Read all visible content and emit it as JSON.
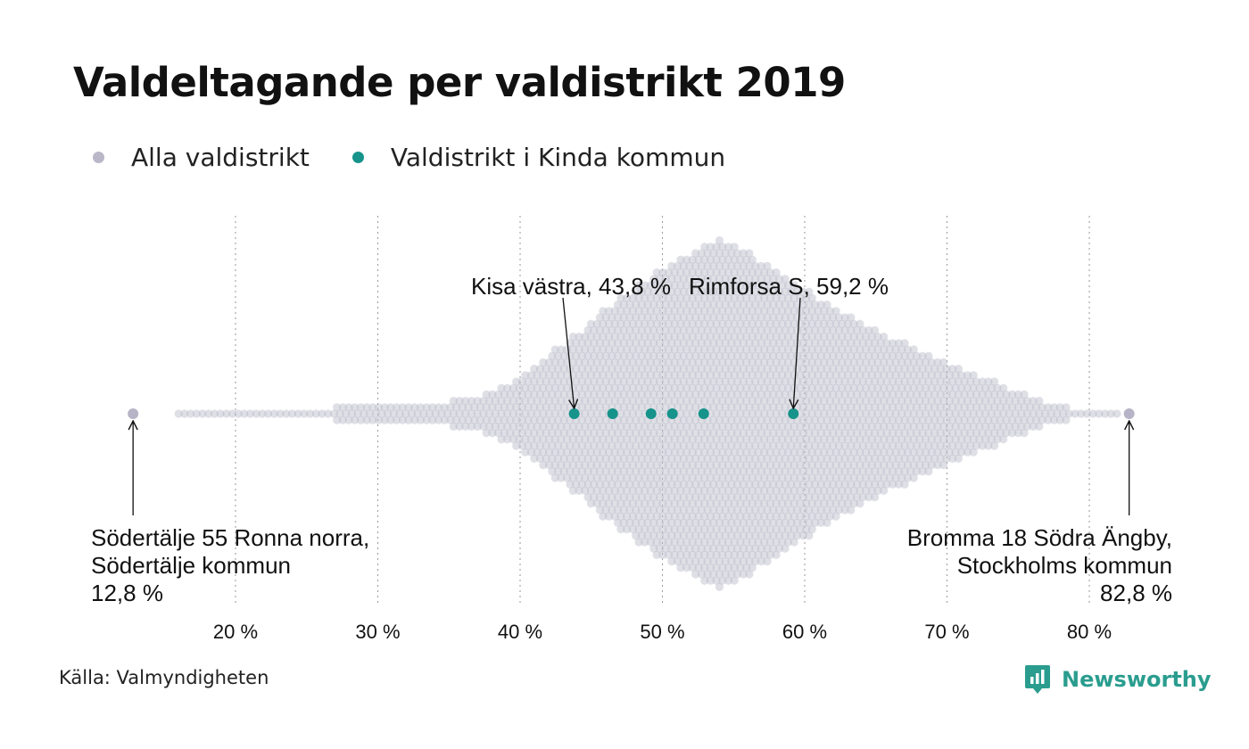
{
  "title": "Valdeltagande per valdistrikt 2019",
  "legend": {
    "all_label": "Alla valdistrikt",
    "all_color": "#b9b7c8",
    "kinda_label": "Valdistrikt i Kinda kommun",
    "kinda_color": "#16938a"
  },
  "source": "Källa: Valmyndigheten",
  "brand": {
    "name": "Newsworthy",
    "color": "#2a9d8f",
    "icon": "newsworthy-logo-icon"
  },
  "chart_data": {
    "type": "scatter",
    "subtype": "beeswarm",
    "title": "Valdeltagande per valdistrikt 2019",
    "xlim": [
      12.8,
      82.8
    ],
    "grid": true,
    "legend_position": "top-left",
    "x_ticks": [
      {
        "value": 20,
        "label": "20 %"
      },
      {
        "value": 30,
        "label": "30 %"
      },
      {
        "value": 40,
        "label": "40 %"
      },
      {
        "value": 50,
        "label": "50 %"
      },
      {
        "value": 60,
        "label": "60 %"
      },
      {
        "value": 70,
        "label": "70 %"
      },
      {
        "value": 80,
        "label": "80 %"
      }
    ],
    "series": [
      {
        "name": "Alla valdistrikt",
        "color": "#b9b7c8",
        "distribution_profile": [
          [
            16,
            0.005
          ],
          [
            20,
            0.02
          ],
          [
            25,
            0.03
          ],
          [
            30,
            0.05
          ],
          [
            35,
            0.07
          ],
          [
            38,
            0.12
          ],
          [
            40,
            0.22
          ],
          [
            43,
            0.4
          ],
          [
            46,
            0.6
          ],
          [
            49,
            0.78
          ],
          [
            52,
            0.93
          ],
          [
            54,
            1.0
          ],
          [
            56,
            0.92
          ],
          [
            59,
            0.76
          ],
          [
            62,
            0.6
          ],
          [
            65,
            0.48
          ],
          [
            68,
            0.36
          ],
          [
            71,
            0.25
          ],
          [
            74,
            0.16
          ],
          [
            76,
            0.09
          ],
          [
            78,
            0.04
          ],
          [
            80,
            0.01
          ],
          [
            82,
            0.004
          ]
        ],
        "extremes": [
          12.8,
          82.8
        ]
      },
      {
        "name": "Valdistrikt i Kinda kommun",
        "color": "#16938a",
        "values": [
          43.8,
          46.5,
          49.2,
          50.7,
          52.9,
          59.2
        ]
      }
    ],
    "annotations": [
      {
        "value": 12.8,
        "lines": [
          "Södertälje 55 Ronna norra,",
          "Södertälje kommun",
          "12,8 %"
        ]
      },
      {
        "value": 82.8,
        "lines": [
          "Bromma 18 Södra Ängby,",
          "Stockholms kommun",
          "82,8 %"
        ]
      },
      {
        "value": 43.8,
        "lines": [
          "Kisa västra, 43,8 %"
        ]
      },
      {
        "value": 59.2,
        "lines": [
          "Rimforsa S, 59,2 %"
        ]
      }
    ]
  }
}
